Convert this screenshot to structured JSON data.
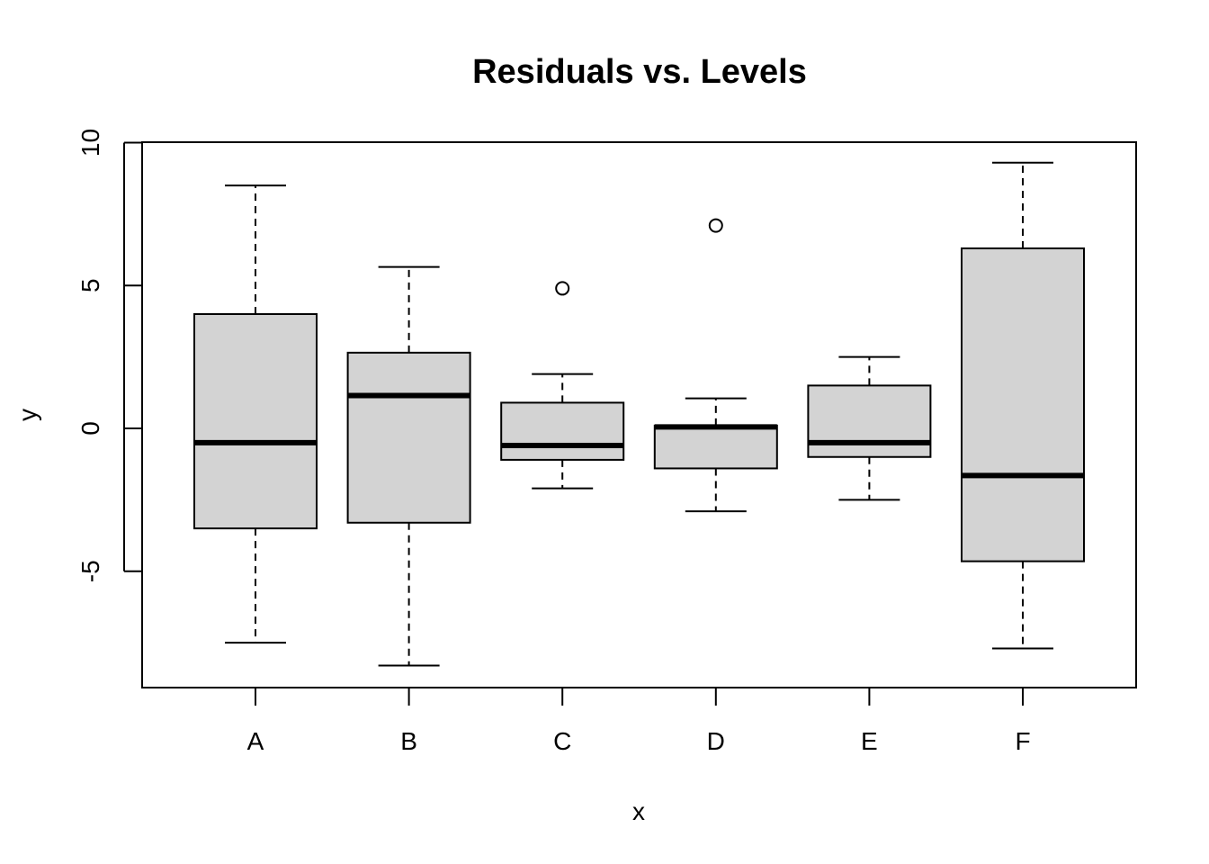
{
  "chart_data": {
    "type": "boxplot",
    "title": "Residuals vs. Levels",
    "xlabel": "x",
    "ylabel": "y",
    "categories": [
      "A",
      "B",
      "C",
      "D",
      "E",
      "F"
    ],
    "ylim": [
      -9.2,
      10
    ],
    "yticks": [
      -5,
      0,
      5,
      10
    ],
    "ytick_labels": [
      "-5",
      "0",
      "5",
      "10"
    ],
    "grid": false,
    "box_fill": "#d3d3d3",
    "line_color": "#000000",
    "boxes": [
      {
        "category": "A",
        "whisker_low": -7.5,
        "q1": -3.5,
        "median": -0.5,
        "q3": 4.0,
        "whisker_high": 8.5,
        "outliers": []
      },
      {
        "category": "B",
        "whisker_low": -8.3,
        "q1": -3.3,
        "median": 1.15,
        "q3": 2.65,
        "whisker_high": 5.65,
        "outliers": []
      },
      {
        "category": "C",
        "whisker_low": -2.1,
        "q1": -1.1,
        "median": -0.6,
        "q3": 0.9,
        "whisker_high": 1.9,
        "outliers": [
          4.9
        ]
      },
      {
        "category": "D",
        "whisker_low": -2.9,
        "q1": -1.4,
        "median": 0.05,
        "q3": 0.1,
        "whisker_high": 1.05,
        "outliers": [
          7.1
        ]
      },
      {
        "category": "E",
        "whisker_low": -2.5,
        "q1": -1.0,
        "median": -0.5,
        "q3": 1.5,
        "whisker_high": 2.5,
        "outliers": []
      },
      {
        "category": "F",
        "whisker_low": -7.7,
        "q1": -4.65,
        "median": -1.65,
        "q3": 6.3,
        "whisker_high": 9.3,
        "outliers": []
      }
    ]
  }
}
